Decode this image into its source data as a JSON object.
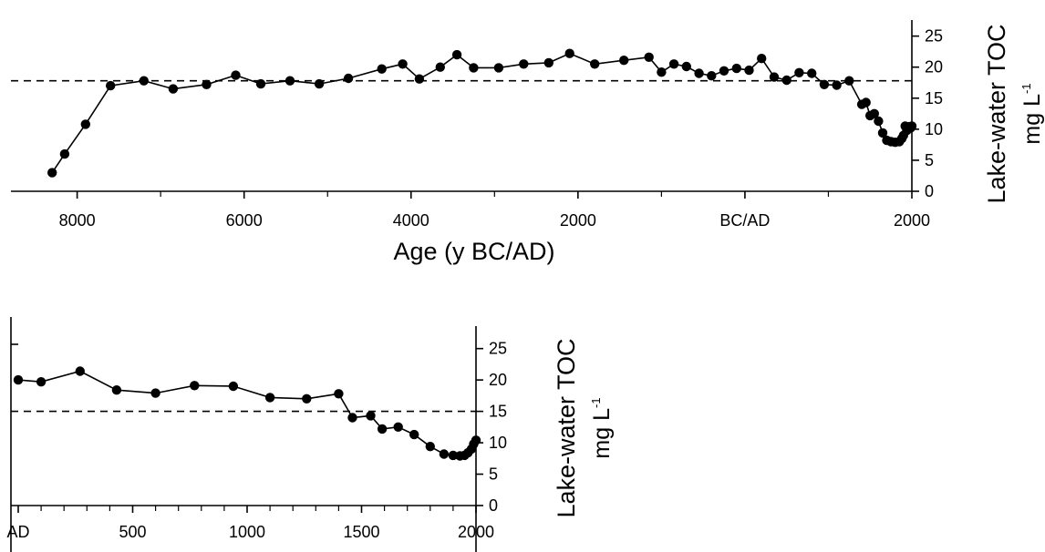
{
  "chart_data": [
    {
      "type": "line",
      "xlabel": "Age (y BC/AD)",
      "ylabel": "Lake-water TOC",
      "yunit": {
        "base": "mg L",
        "sup": "-1"
      },
      "xlim": [
        -8400,
        2000
      ],
      "ylim": [
        0,
        27
      ],
      "x_ticks": [
        {
          "value": -8000,
          "label": "8000"
        },
        {
          "value": -6000,
          "label": "6000"
        },
        {
          "value": -4000,
          "label": "4000"
        },
        {
          "value": -2000,
          "label": "2000"
        },
        {
          "value": 0,
          "label": "BC/AD"
        },
        {
          "value": 2000,
          "label": "2000"
        }
      ],
      "x_minor_ticks": [
        -7000,
        -5000,
        -3000,
        -1000,
        1000
      ],
      "y_ticks": [
        0,
        5,
        10,
        15,
        20,
        25
      ],
      "reference_line": {
        "y": 17.8,
        "style": "dashed"
      },
      "series": [
        {
          "x": [
            -8300,
            -8150,
            -7900,
            -7600,
            -7200,
            -6850,
            -6450,
            -6100,
            -5800,
            -5450,
            -5100,
            -4750,
            -4350,
            -4100,
            -3900,
            -3650,
            -3450,
            -3250,
            -2950,
            -2650,
            -2350,
            -2100,
            -1800,
            -1450,
            -1150,
            -1000,
            -850,
            -700,
            -550,
            -400,
            -250,
            -100,
            50,
            200,
            350,
            500,
            650,
            800,
            950,
            1100,
            1250,
            1400,
            1450,
            1500,
            1550,
            1600,
            1650,
            1700,
            1750,
            1800,
            1850,
            1880,
            1900,
            1920,
            1940,
            1955,
            1965,
            1975,
            1985,
            1995,
            2000
          ],
          "y": [
            3,
            6,
            10.8,
            17,
            17.8,
            16.5,
            17.2,
            18.7,
            17.3,
            17.8,
            17.3,
            18.2,
            19.7,
            20.5,
            18.1,
            20,
            22,
            19.9,
            19.9,
            20.5,
            20.7,
            22.2,
            20.5,
            21.1,
            21.6,
            19.2,
            20.5,
            20.1,
            19,
            18.6,
            19.4,
            19.8,
            19.5,
            21.4,
            18.4,
            17.9,
            19.1,
            19,
            17.2,
            17.1,
            17.8,
            14,
            14.3,
            12.2,
            12.5,
            11.3,
            9.4,
            8.2,
            8,
            7.9,
            8,
            8.5,
            9,
            10.5,
            9.8,
            10.2,
            10.4,
            10.3,
            10.2,
            10.4,
            10.5
          ]
        }
      ]
    },
    {
      "type": "line",
      "ylabel": "Lake-water TOC",
      "yunit": {
        "base": "mg L",
        "sup": "-1"
      },
      "xlim": [
        0,
        2000
      ],
      "ylim": [
        0,
        28
      ],
      "x_ticks": [
        {
          "value": 0,
          "label": "AD"
        },
        {
          "value": 500,
          "label": "500"
        },
        {
          "value": 1000,
          "label": "1000"
        },
        {
          "value": 1500,
          "label": "1500"
        },
        {
          "value": 2000,
          "label": "2000"
        }
      ],
      "x_minor_ticks": [
        100,
        200,
        300,
        400,
        600,
        700,
        800,
        900,
        1100,
        1200,
        1300,
        1400,
        1600,
        1700,
        1800,
        1900
      ],
      "y_ticks": [
        0,
        5,
        10,
        15,
        20,
        25
      ],
      "reference_line": {
        "y": 15,
        "style": "dashed"
      },
      "series": [
        {
          "x": [
            0,
            100,
            270,
            430,
            600,
            770,
            940,
            1100,
            1260,
            1400,
            1460,
            1540,
            1590,
            1660,
            1730,
            1800,
            1860,
            1900,
            1930,
            1950,
            1965,
            1980,
            1990,
            2000
          ],
          "y": [
            20,
            19.7,
            21.4,
            18.4,
            17.9,
            19.1,
            19,
            17.2,
            17,
            17.8,
            14,
            14.3,
            12.2,
            12.5,
            11.3,
            9.4,
            8.2,
            8,
            7.9,
            8,
            8.4,
            9,
            9.8,
            10.4
          ]
        }
      ]
    }
  ]
}
